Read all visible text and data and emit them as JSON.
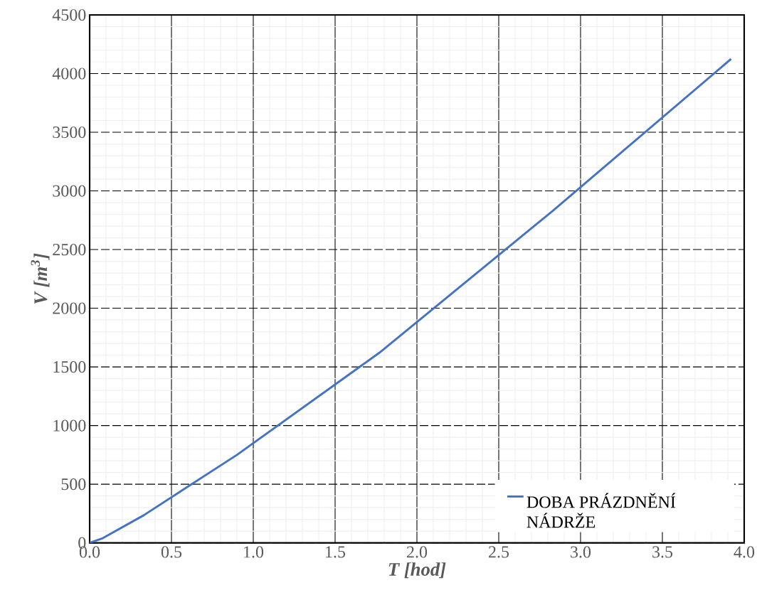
{
  "chart_data": {
    "type": "line",
    "xlabel": "T [hod]",
    "ylabel": "V [m$^{3}$]",
    "series": [
      {
        "name": "DOBA PRÁZDNĚNÍ NÁDRŽE",
        "color": "#4472c4",
        "x": [
          0,
          0.08,
          0.33,
          0.9,
          1.77,
          2.83,
          3.92
        ],
        "values": [
          0,
          40,
          235,
          750,
          1620,
          2830,
          4125
        ]
      }
    ],
    "xlim": [
      0,
      4
    ],
    "ylim": [
      0,
      4500
    ],
    "xticks": [
      {
        "value": 0,
        "label": "0.0"
      },
      0.5,
      {
        "value": 1,
        "label": "1.0"
      },
      1.5,
      {
        "value": 2,
        "label": "2.0"
      },
      2.5,
      {
        "value": 3,
        "label": "3.0"
      },
      3.5,
      {
        "value": 4,
        "label": "4.0"
      }
    ],
    "yticks": [
      0,
      500,
      1000,
      1500,
      2000,
      2500,
      3000,
      3500,
      4000,
      4500
    ],
    "grid": true,
    "legend": "bottom right",
    "marker": "none",
    "line_style": "solid"
  }
}
